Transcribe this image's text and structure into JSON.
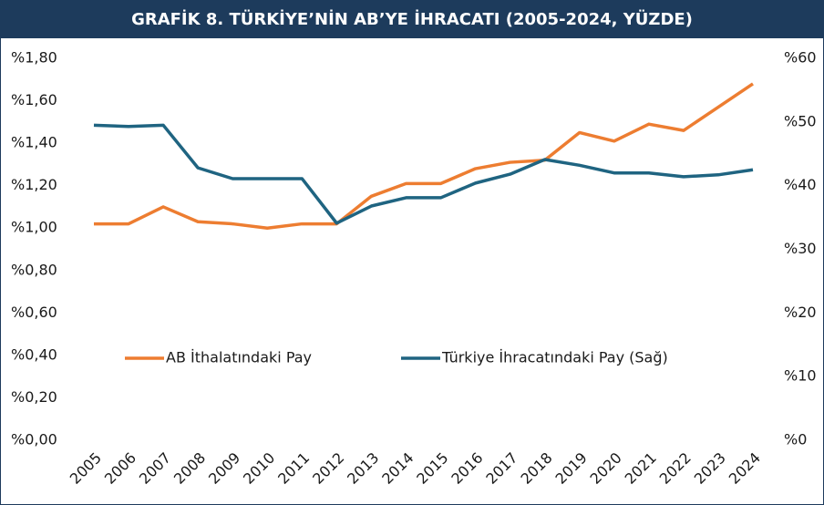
{
  "chart_data": {
    "type": "line",
    "title": "GRAFİK 8. TÜRKİYE’NİN AB’YE İHRACATI (2005-2024, YÜZDE)",
    "categories": [
      "2005",
      "2006",
      "2007",
      "2008",
      "2009",
      "2010",
      "2011",
      "2012",
      "2013",
      "2014",
      "2015",
      "2016",
      "2017",
      "2018",
      "2019",
      "2020",
      "2021",
      "2022",
      "2023",
      "2024"
    ],
    "series": [
      {
        "name": "AB İthalatındaki Pay",
        "color": "#ed7d31",
        "axis": "y",
        "values": [
          1.02,
          1.02,
          1.1,
          1.03,
          1.02,
          1.0,
          1.02,
          1.02,
          1.15,
          1.21,
          1.21,
          1.28,
          1.31,
          1.32,
          1.45,
          1.41,
          1.49,
          1.46,
          1.57,
          1.68
        ]
      },
      {
        "name": "Türkiye İhracatındaki Pay (Sağ)",
        "color": "#1f6481",
        "axis": "y2",
        "values": [
          49.5,
          49.3,
          49.5,
          42.8,
          41.1,
          41.1,
          41.1,
          34.1,
          36.8,
          38.1,
          38.1,
          40.4,
          41.8,
          44.1,
          43.2,
          42.0,
          42.0,
          41.4,
          41.7,
          42.5
        ]
      }
    ],
    "ylim": [
      0,
      1.8
    ],
    "yticks": [
      {
        "value": 0,
        "label": "%0,00"
      },
      {
        "value": 0.2,
        "label": "%0,20"
      },
      {
        "value": 0.4,
        "label": "%0,40"
      },
      {
        "value": 0.6,
        "label": "%0,60"
      },
      {
        "value": 0.8,
        "label": "%0,80"
      },
      {
        "value": 1.0,
        "label": "%1,00"
      },
      {
        "value": 1.2,
        "label": "%1,20"
      },
      {
        "value": 1.4,
        "label": "%1,40"
      },
      {
        "value": 1.6,
        "label": "%1,60"
      },
      {
        "value": 1.8,
        "label": "%1,80"
      }
    ],
    "y2lim": [
      0,
      60
    ],
    "y2ticks": [
      {
        "value": 0,
        "label": "%0"
      },
      {
        "value": 10,
        "label": "%10"
      },
      {
        "value": 20,
        "label": "%20"
      },
      {
        "value": 30,
        "label": "%30"
      },
      {
        "value": 40,
        "label": "%40"
      },
      {
        "value": 50,
        "label": "%50"
      },
      {
        "value": 60,
        "label": "%60"
      }
    ]
  }
}
